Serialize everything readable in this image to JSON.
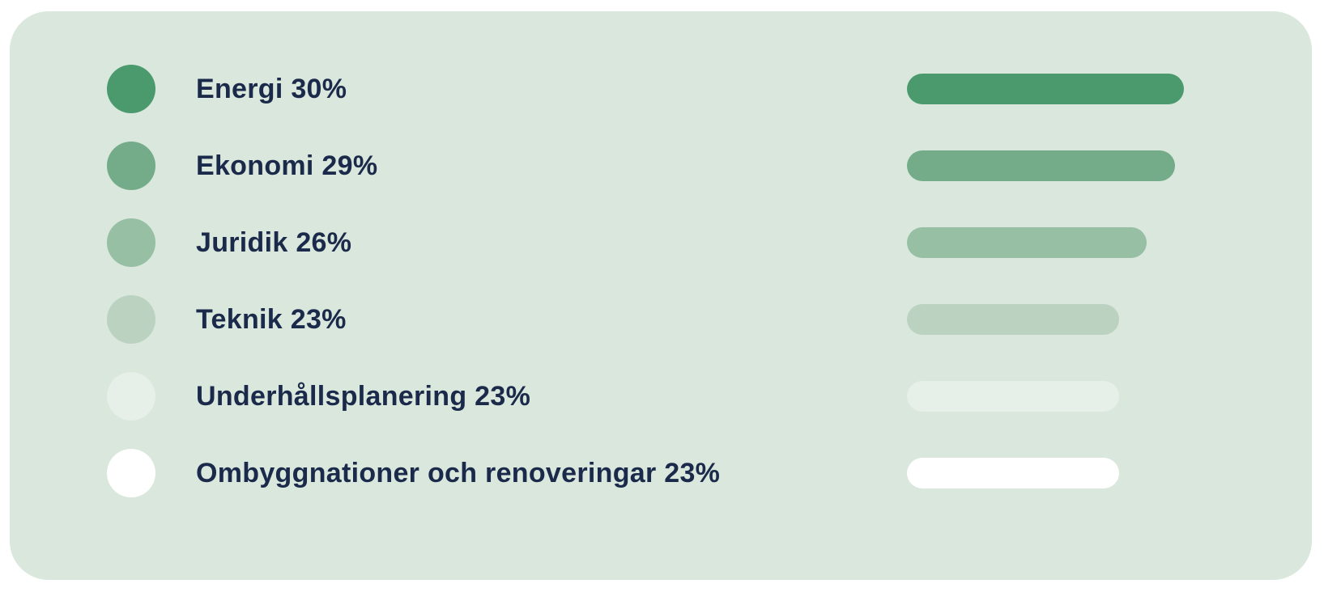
{
  "chart_data": {
    "type": "bar",
    "orientation": "horizontal",
    "title": "",
    "unit": "%",
    "categories": [
      "Energi",
      "Ekonomi",
      "Juridik",
      "Teknik",
      "Underhållsplanering",
      "Ombyggnationer och renoveringar"
    ],
    "values": [
      30,
      29,
      26,
      23,
      23,
      23
    ],
    "value_max_for_scale": 30,
    "legend_position": "left",
    "grid": false,
    "axes_visible": false,
    "series": [
      {
        "label": "Energi 30%",
        "category": "Energi",
        "value": 30,
        "color": "#4a9a6e"
      },
      {
        "label": "Ekonomi 29%",
        "category": "Ekonomi",
        "value": 29,
        "color": "#74ab88"
      },
      {
        "label": "Juridik 26%",
        "category": "Juridik",
        "value": 26,
        "color": "#96bfa4"
      },
      {
        "label": "Teknik 23%",
        "category": "Teknik",
        "value": 23,
        "color": "#bbd2c1"
      },
      {
        "label": "Underhållsplanering 23%",
        "category": "Underhållsplanering",
        "value": 23,
        "color": "#e6efe8"
      },
      {
        "label": "Ombyggnationer och renoveringar 23%",
        "category": "Ombyggnationer och renoveringar",
        "value": 23,
        "color": "#ffffff"
      }
    ]
  },
  "colors": {
    "card_background": "#d9e7dc",
    "page_background": "#ffffff",
    "label_text": "#1b2a4a"
  }
}
